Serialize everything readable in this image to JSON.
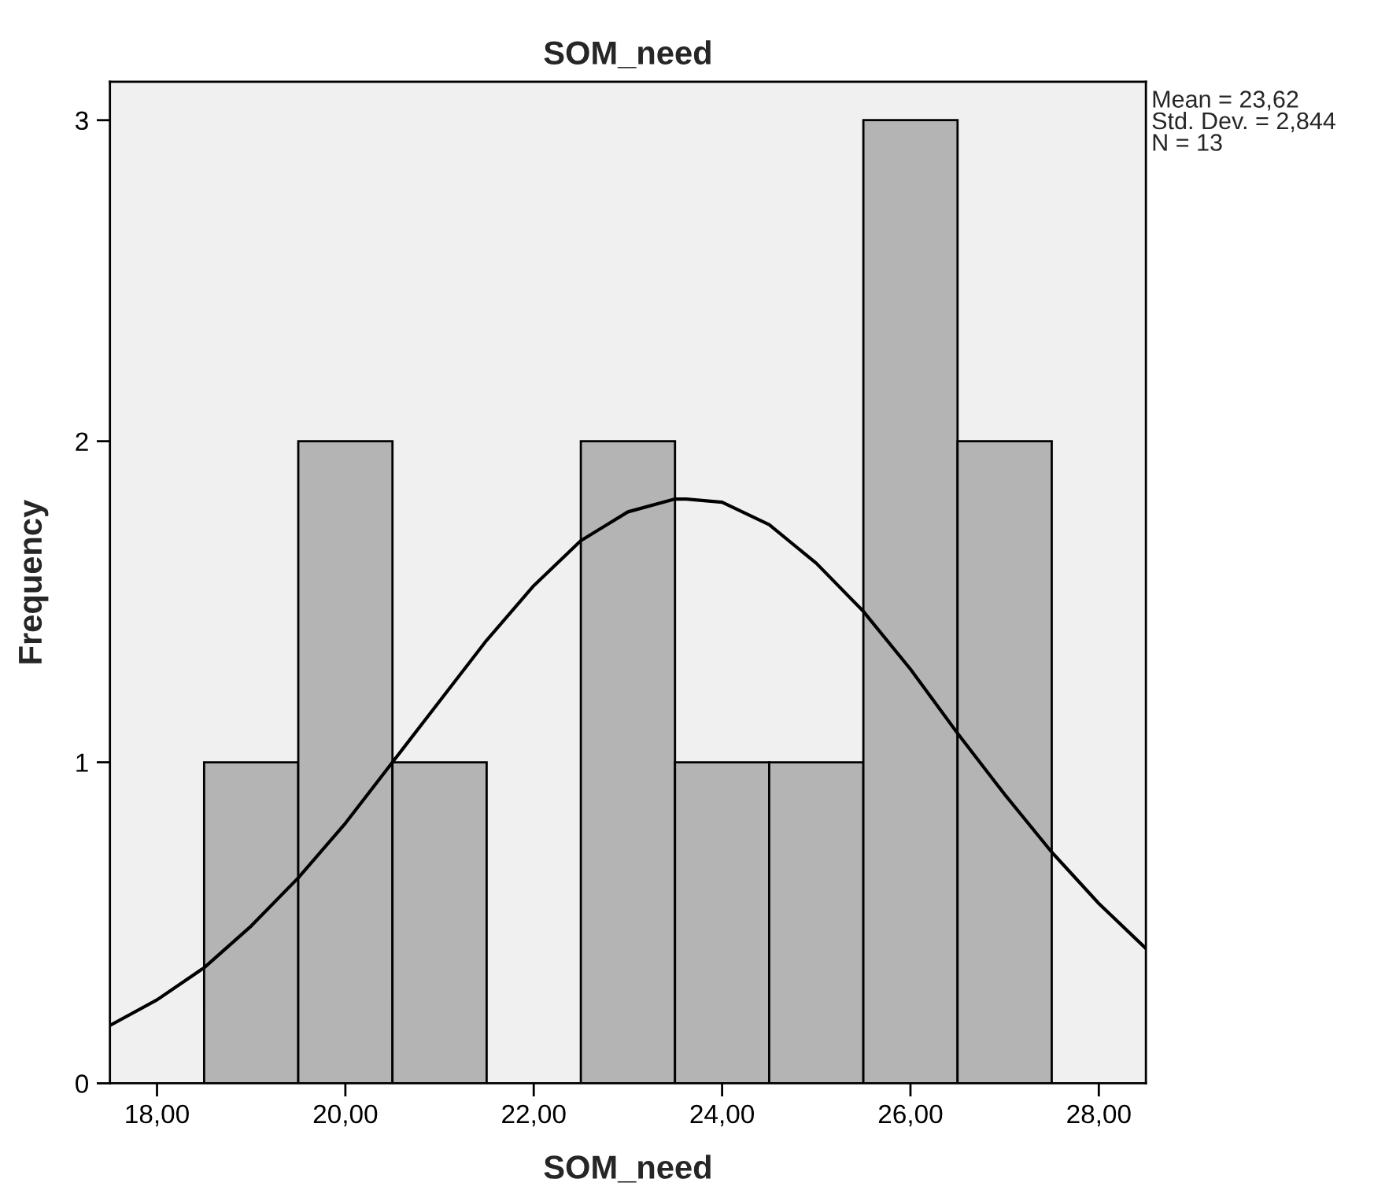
{
  "chart_data": {
    "type": "histogram",
    "title": "SOM_need",
    "xlabel": "SOM_need",
    "ylabel": "Frequency",
    "bins": [
      18.5,
      19.5,
      20.5,
      21.5,
      22.5,
      23.5,
      24.5,
      25.5,
      26.5,
      27.5
    ],
    "values": [
      1,
      2,
      1,
      0,
      2,
      1,
      1,
      3,
      2
    ],
    "color": "#b4b4b4",
    "series": [
      {
        "type": "line",
        "color": "#000000",
        "x": [
          17.5,
          18.0,
          18.5,
          19.0,
          19.5,
          20.0,
          20.5,
          21.0,
          21.5,
          22.0,
          22.5,
          23.0,
          23.5,
          23.62,
          24.0,
          24.5,
          25.0,
          25.5,
          26.0,
          26.5,
          27.0,
          27.5,
          28.0,
          28.5
        ],
        "values": [
          0.18,
          0.26,
          0.36,
          0.49,
          0.64,
          0.81,
          1.0,
          1.19,
          1.38,
          1.55,
          1.69,
          1.78,
          1.82,
          1.82,
          1.81,
          1.74,
          1.62,
          1.47,
          1.29,
          1.09,
          0.9,
          0.72,
          0.56,
          0.42
        ]
      }
    ],
    "xlim": [
      17.5,
      28.5
    ],
    "xticks": [
      {
        "value": 18,
        "label": "18,00"
      },
      {
        "value": 20,
        "label": "20,00"
      },
      {
        "value": 22,
        "label": "22,00"
      },
      {
        "value": 24,
        "label": "24,00"
      },
      {
        "value": 26,
        "label": "26,00"
      },
      {
        "value": 28,
        "label": "28,00"
      }
    ],
    "ylim": [
      0,
      3.12
    ],
    "yticks": [
      0,
      1,
      2,
      3
    ],
    "annotations": [
      "Mean = 23,62",
      "Std. Dev. = 2,844",
      "N = 13"
    ],
    "grid": false,
    "legend": false
  }
}
